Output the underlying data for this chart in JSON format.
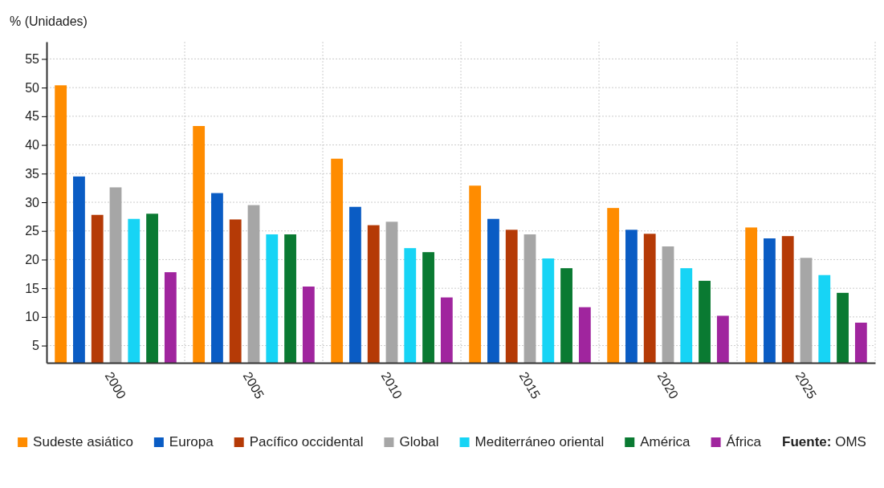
{
  "chart_data": {
    "type": "bar",
    "ylabel": "% (Unidades)",
    "categories": [
      "2000",
      "2005",
      "2010",
      "2015",
      "2020",
      "2025"
    ],
    "series": [
      {
        "name": "Sudeste asiático",
        "color": "#ff8c00",
        "values": [
          50.4,
          43.3,
          37.6,
          32.9,
          29.0,
          25.6
        ]
      },
      {
        "name": "Europa",
        "color": "#0a5cc4",
        "values": [
          34.5,
          31.6,
          29.2,
          27.1,
          25.2,
          23.7
        ]
      },
      {
        "name": "Pacífico occidental",
        "color": "#b53a06",
        "values": [
          27.8,
          27.0,
          26.0,
          25.2,
          24.5,
          24.1
        ]
      },
      {
        "name": "Global",
        "color": "#a6a6a6",
        "values": [
          32.6,
          29.5,
          26.6,
          24.4,
          22.3,
          20.3
        ]
      },
      {
        "name": "Mediterráneo oriental",
        "color": "#17d4f5",
        "values": [
          27.1,
          24.4,
          22.0,
          20.2,
          18.5,
          17.3
        ]
      },
      {
        "name": "América",
        "color": "#0a7a32",
        "values": [
          28.0,
          24.4,
          21.3,
          18.5,
          16.3,
          14.2
        ]
      },
      {
        "name": "África",
        "color": "#a0259e",
        "values": [
          17.8,
          15.3,
          13.4,
          11.7,
          10.2,
          9.0
        ]
      }
    ],
    "ylim": [
      2,
      58
    ],
    "yticks": [
      5,
      10,
      15,
      20,
      25,
      30,
      35,
      40,
      45,
      50,
      55
    ],
    "grid": true,
    "legend": "bottom",
    "annotations": [
      "Fuente: OMS"
    ]
  }
}
